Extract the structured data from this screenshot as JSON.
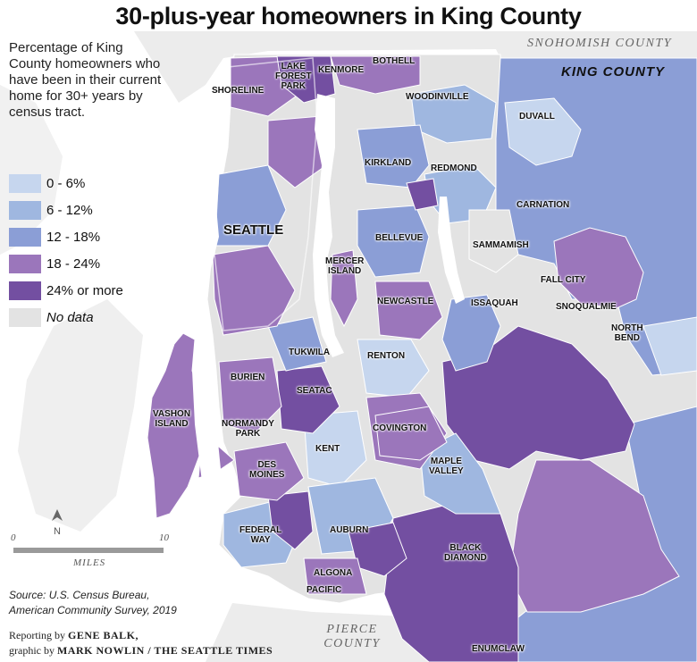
{
  "title": "30-plus-year homeowners in King County",
  "legend": {
    "description": "Percentage of King County homeowners who have been in their current home for 30+ years by census tract.",
    "bins": [
      {
        "label": "0 - 6%",
        "color": "#c6d6ee"
      },
      {
        "label": "6 - 12%",
        "color": "#9fb7e0"
      },
      {
        "label": "12 - 18%",
        "color": "#8b9ed6"
      },
      {
        "label": "18 - 24%",
        "color": "#9b76bb"
      },
      {
        "label": "24% or more",
        "color": "#734fa1"
      }
    ],
    "no_data": {
      "label": "No data",
      "color": "#e3e3e3"
    }
  },
  "regions": {
    "snohomish": "SNOHOMISH COUNTY",
    "king": "KING COUNTY",
    "pierce_line1": "PIERCE",
    "pierce_line2": "COUNTY"
  },
  "places": {
    "lake_forest_park": [
      "LAKE",
      "FOREST",
      "PARK"
    ],
    "kenmore": "KENMORE",
    "bothell": "BOTHELL",
    "shoreline": "SHORELINE",
    "woodinville": "WOODINVILLE",
    "duvall": "DUVALL",
    "kirkland": "KIRKLAND",
    "redmond": "REDMOND",
    "carnation": "CARNATION",
    "seattle": "SEATTLE",
    "bellevue": "BELLEVUE",
    "sammamish": "SAMMAMISH",
    "mercer_island": [
      "MERCER",
      "ISLAND"
    ],
    "fall_city": "FALL CITY",
    "newcastle": "NEWCASTLE",
    "issaquah": "ISSAQUAH",
    "snoqualmie": "SNOQUALMIE",
    "north_bend": [
      "NORTH",
      "BEND"
    ],
    "tukwila": "TUKWILA",
    "renton": "RENTON",
    "burien": "BURIEN",
    "seatac": "SEATAC",
    "vashon_island": [
      "VASHON",
      "ISLAND"
    ],
    "normandy_park": [
      "NORMANDY",
      "PARK"
    ],
    "covington": "COVINGTON",
    "kent": "KENT",
    "des_moines": [
      "DES",
      "MOINES"
    ],
    "maple_valley": [
      "MAPLE",
      "VALLEY"
    ],
    "federal_way": [
      "FEDERAL",
      "WAY"
    ],
    "auburn": "AUBURN",
    "black_diamond": [
      "BLACK",
      "DIAMOND"
    ],
    "algona": "ALGONA",
    "pacific": "PACIFIC",
    "enumclaw": "ENUMCLAW"
  },
  "scale": {
    "start": "0",
    "end": "10",
    "unit": "MILES",
    "north": "N"
  },
  "source": [
    "Source: U.S. Census Bureau,",
    "American Community Survey, 2019"
  ],
  "credits": {
    "line1_prefix": "Reporting by",
    "reporter": "GENE BALK,",
    "line2_prefix": "graphic by",
    "graphic": "MARK NOWLIN / THE SEATTLE TIMES"
  }
}
